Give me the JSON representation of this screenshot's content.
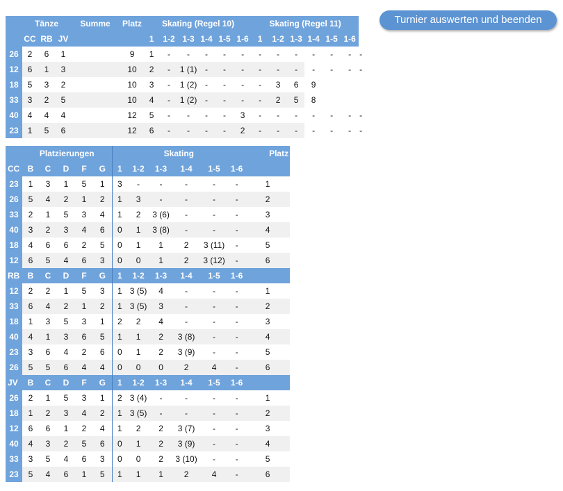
{
  "button": {
    "label": "Turnier auswerten und beenden"
  },
  "summary": {
    "header1": {
      "taenze": "Tänze",
      "summe": "Summe",
      "platz": "Platz",
      "skating10": "Skating (Regel 10)",
      "skating11": "Skating (Regel 11)"
    },
    "dances": [
      "CC",
      "RB",
      "JV"
    ],
    "sk10_cols": [
      "1",
      "1-2",
      "1-3",
      "1-4",
      "1-5",
      "1-6"
    ],
    "sk11_cols": [
      "1",
      "1-2",
      "1-3",
      "1-4",
      "1-5",
      "1-6"
    ],
    "rows": [
      {
        "nr": "26",
        "d": [
          "2",
          "6",
          "1"
        ],
        "summe": "9",
        "platz": "1",
        "s10": [
          "-",
          "-",
          "-",
          "-",
          "-",
          "-"
        ],
        "s11": [
          "-",
          "-",
          "-",
          "-",
          "-",
          "-"
        ]
      },
      {
        "nr": "12",
        "d": [
          "6",
          "1",
          "3"
        ],
        "summe": "10",
        "platz": "2",
        "s10": [
          "-",
          "1 (1)",
          "-",
          "-",
          "-",
          "-"
        ],
        "s11": [
          "-",
          "-",
          "-",
          "-",
          "-",
          "-"
        ]
      },
      {
        "nr": "18",
        "d": [
          "5",
          "3",
          "2"
        ],
        "summe": "10",
        "platz": "3",
        "s10": [
          "-",
          "1 (2)",
          "-",
          "-",
          "-",
          "-"
        ],
        "s11": [
          "3",
          "6",
          "9",
          "",
          "",
          ""
        ]
      },
      {
        "nr": "33",
        "d": [
          "3",
          "2",
          "5"
        ],
        "summe": "10",
        "platz": "4",
        "s10": [
          "-",
          "1 (2)",
          "-",
          "-",
          "-",
          "-"
        ],
        "s11": [
          "2",
          "5",
          "8",
          "",
          "",
          ""
        ]
      },
      {
        "nr": "40",
        "d": [
          "4",
          "4",
          "4"
        ],
        "summe": "12",
        "platz": "5",
        "s10": [
          "-",
          "-",
          "-",
          "-",
          "3",
          "-"
        ],
        "s11": [
          "-",
          "-",
          "-",
          "-",
          "-",
          "-"
        ]
      },
      {
        "nr": "23",
        "d": [
          "1",
          "5",
          "6"
        ],
        "summe": "12",
        "platz": "6",
        "s10": [
          "-",
          "-",
          "-",
          "-",
          "2",
          "-"
        ],
        "s11": [
          "-",
          "-",
          "-",
          "-",
          "-",
          "-"
        ]
      }
    ]
  },
  "detail": {
    "header": {
      "platzierungen": "Platzierungen",
      "skating": "Skating",
      "platz": "Platz"
    },
    "judges": [
      "B",
      "C",
      "D",
      "F",
      "G"
    ],
    "sk_cols": [
      "1",
      "1-2",
      "1-3",
      "1-4",
      "1-5",
      "1-6"
    ],
    "sections": [
      {
        "dance": "CC",
        "rows": [
          {
            "nr": "23",
            "p": [
              "1",
              "3",
              "1",
              "5",
              "1"
            ],
            "s": [
              "3",
              "-",
              "-",
              "-",
              "-",
              "-"
            ],
            "platz": "1"
          },
          {
            "nr": "26",
            "p": [
              "5",
              "4",
              "2",
              "1",
              "2"
            ],
            "s": [
              "1",
              "3",
              "-",
              "-",
              "-",
              "-"
            ],
            "platz": "2"
          },
          {
            "nr": "33",
            "p": [
              "2",
              "1",
              "5",
              "3",
              "4"
            ],
            "s": [
              "1",
              "2",
              "3 (6)",
              "-",
              "-",
              "-"
            ],
            "platz": "3"
          },
          {
            "nr": "40",
            "p": [
              "3",
              "2",
              "3",
              "4",
              "6"
            ],
            "s": [
              "0",
              "1",
              "3 (8)",
              "-",
              "-",
              "-"
            ],
            "platz": "4"
          },
          {
            "nr": "18",
            "p": [
              "4",
              "6",
              "6",
              "2",
              "5"
            ],
            "s": [
              "0",
              "1",
              "1",
              "2",
              "3 (11)",
              "-"
            ],
            "platz": "5"
          },
          {
            "nr": "12",
            "p": [
              "6",
              "5",
              "4",
              "6",
              "3"
            ],
            "s": [
              "0",
              "0",
              "1",
              "2",
              "3 (12)",
              "-"
            ],
            "platz": "6"
          }
        ]
      },
      {
        "dance": "RB",
        "rows": [
          {
            "nr": "12",
            "p": [
              "2",
              "2",
              "1",
              "5",
              "3"
            ],
            "s": [
              "1",
              "3 (5)",
              "4",
              "-",
              "-",
              "-"
            ],
            "platz": "1"
          },
          {
            "nr": "33",
            "p": [
              "6",
              "4",
              "2",
              "1",
              "2"
            ],
            "s": [
              "1",
              "3 (5)",
              "3",
              "-",
              "-",
              "-"
            ],
            "platz": "2"
          },
          {
            "nr": "18",
            "p": [
              "1",
              "3",
              "5",
              "3",
              "1"
            ],
            "s": [
              "2",
              "2",
              "4",
              "-",
              "-",
              "-"
            ],
            "platz": "3"
          },
          {
            "nr": "40",
            "p": [
              "4",
              "1",
              "3",
              "6",
              "5"
            ],
            "s": [
              "1",
              "1",
              "2",
              "3 (8)",
              "-",
              "-"
            ],
            "platz": "4"
          },
          {
            "nr": "23",
            "p": [
              "3",
              "6",
              "4",
              "2",
              "6"
            ],
            "s": [
              "0",
              "1",
              "2",
              "3 (9)",
              "-",
              "-"
            ],
            "platz": "5"
          },
          {
            "nr": "26",
            "p": [
              "5",
              "5",
              "6",
              "4",
              "4"
            ],
            "s": [
              "0",
              "0",
              "0",
              "2",
              "4",
              "-"
            ],
            "platz": "6"
          }
        ]
      },
      {
        "dance": "JV",
        "rows": [
          {
            "nr": "26",
            "p": [
              "2",
              "1",
              "5",
              "3",
              "1"
            ],
            "s": [
              "2",
              "3 (4)",
              "-",
              "-",
              "-",
              "-"
            ],
            "platz": "1"
          },
          {
            "nr": "18",
            "p": [
              "1",
              "2",
              "3",
              "4",
              "2"
            ],
            "s": [
              "1",
              "3 (5)",
              "-",
              "-",
              "-",
              "-"
            ],
            "platz": "2"
          },
          {
            "nr": "12",
            "p": [
              "6",
              "6",
              "1",
              "2",
              "4"
            ],
            "s": [
              "1",
              "2",
              "2",
              "3 (7)",
              "-",
              "-"
            ],
            "platz": "3"
          },
          {
            "nr": "40",
            "p": [
              "4",
              "3",
              "2",
              "5",
              "6"
            ],
            "s": [
              "0",
              "1",
              "2",
              "3 (9)",
              "-",
              "-"
            ],
            "platz": "4"
          },
          {
            "nr": "33",
            "p": [
              "3",
              "5",
              "4",
              "6",
              "3"
            ],
            "s": [
              "0",
              "0",
              "2",
              "3 (10)",
              "-",
              "-"
            ],
            "platz": "5"
          },
          {
            "nr": "23",
            "p": [
              "5",
              "4",
              "6",
              "1",
              "5"
            ],
            "s": [
              "1",
              "1",
              "1",
              "2",
              "4",
              "-"
            ],
            "platz": "6"
          }
        ]
      }
    ]
  }
}
